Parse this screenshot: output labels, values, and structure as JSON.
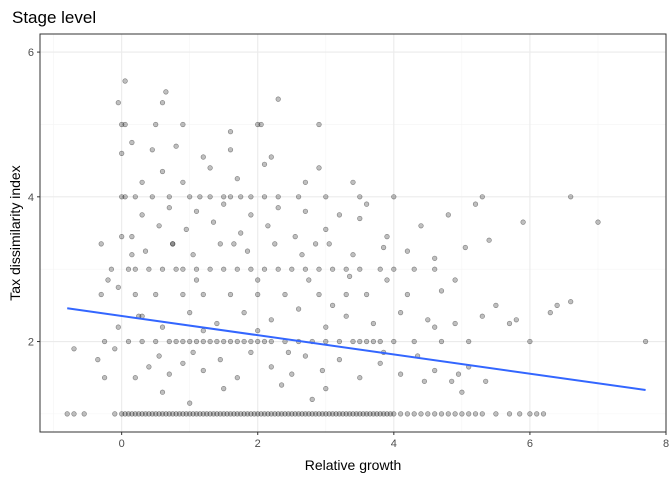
{
  "chart_data": {
    "type": "scatter",
    "title": "Stage level",
    "xlabel": "Relative growth",
    "ylabel": "Tax dissimilarity index",
    "xlim": [
      -1.2,
      8.0
    ],
    "ylim": [
      0.75,
      6.25
    ],
    "x_ticks": [
      0,
      2,
      4,
      6,
      8
    ],
    "x_tick_labels": [
      "0",
      "2",
      "4",
      "6",
      "8"
    ],
    "y_ticks": [
      2,
      4,
      6
    ],
    "y_tick_labels": [
      "2",
      "4",
      "6"
    ],
    "grid": true,
    "legend": "none",
    "colors": {
      "points": "#000000",
      "points_alpha": 0.25,
      "trend_line": "#3366ff",
      "grid": "#ebebeb",
      "border": "#333333"
    },
    "trend_line": {
      "type": "linear",
      "x": [
        -0.8,
        7.7
      ],
      "y": [
        2.46,
        1.33
      ]
    },
    "points": [
      [
        -0.8,
        1.0
      ],
      [
        -0.7,
        1.0
      ],
      [
        -0.55,
        1.0
      ],
      [
        -0.7,
        1.9
      ],
      [
        -0.35,
        1.75
      ],
      [
        -0.25,
        2.0
      ],
      [
        -0.3,
        2.65
      ],
      [
        -0.2,
        2.85
      ],
      [
        -0.1,
        1.9
      ],
      [
        -0.05,
        2.2
      ],
      [
        -0.3,
        3.35
      ],
      [
        0.15,
        3.2
      ],
      [
        -0.15,
        3.0
      ],
      [
        -0.25,
        1.5
      ],
      [
        -0.1,
        1.0
      ],
      [
        -0.05,
        2.75
      ],
      [
        0.0,
        3.45
      ],
      [
        0.05,
        4.0
      ],
      [
        0.0,
        1.0
      ],
      [
        0.05,
        1.0
      ],
      [
        0.1,
        1.0
      ],
      [
        0.15,
        1.0
      ],
      [
        0.2,
        1.0
      ],
      [
        0.25,
        1.0
      ],
      [
        0.3,
        1.0
      ],
      [
        0.35,
        1.0
      ],
      [
        0.4,
        1.0
      ],
      [
        0.45,
        1.0
      ],
      [
        0.5,
        1.0
      ],
      [
        0.55,
        1.0
      ],
      [
        0.6,
        1.0
      ],
      [
        0.65,
        1.0
      ],
      [
        0.7,
        1.0
      ],
      [
        0.75,
        1.0
      ],
      [
        0.8,
        1.0
      ],
      [
        0.85,
        1.0
      ],
      [
        0.9,
        1.0
      ],
      [
        0.95,
        1.0
      ],
      [
        1.0,
        1.0
      ],
      [
        1.05,
        1.0
      ],
      [
        1.1,
        1.0
      ],
      [
        1.15,
        1.0
      ],
      [
        1.2,
        1.0
      ],
      [
        1.25,
        1.0
      ],
      [
        1.3,
        1.0
      ],
      [
        1.35,
        1.0
      ],
      [
        1.4,
        1.0
      ],
      [
        1.45,
        1.0
      ],
      [
        1.5,
        1.0
      ],
      [
        1.55,
        1.0
      ],
      [
        1.6,
        1.0
      ],
      [
        1.65,
        1.0
      ],
      [
        1.7,
        1.0
      ],
      [
        1.75,
        1.0
      ],
      [
        1.8,
        1.0
      ],
      [
        1.85,
        1.0
      ],
      [
        1.9,
        1.0
      ],
      [
        1.95,
        1.0
      ],
      [
        2.0,
        1.0
      ],
      [
        2.05,
        1.0
      ],
      [
        2.1,
        1.0
      ],
      [
        2.15,
        1.0
      ],
      [
        2.2,
        1.0
      ],
      [
        2.25,
        1.0
      ],
      [
        2.3,
        1.0
      ],
      [
        2.35,
        1.0
      ],
      [
        2.4,
        1.0
      ],
      [
        2.45,
        1.0
      ],
      [
        2.5,
        1.0
      ],
      [
        2.55,
        1.0
      ],
      [
        2.6,
        1.0
      ],
      [
        2.65,
        1.0
      ],
      [
        2.7,
        1.0
      ],
      [
        2.75,
        1.0
      ],
      [
        2.8,
        1.0
      ],
      [
        2.85,
        1.0
      ],
      [
        2.9,
        1.0
      ],
      [
        2.95,
        1.0
      ],
      [
        3.0,
        1.0
      ],
      [
        3.05,
        1.0
      ],
      [
        3.1,
        1.0
      ],
      [
        3.15,
        1.0
      ],
      [
        3.2,
        1.0
      ],
      [
        3.25,
        1.0
      ],
      [
        3.3,
        1.0
      ],
      [
        3.35,
        1.0
      ],
      [
        3.4,
        1.0
      ],
      [
        3.45,
        1.0
      ],
      [
        3.5,
        1.0
      ],
      [
        3.55,
        1.0
      ],
      [
        3.6,
        1.0
      ],
      [
        3.65,
        1.0
      ],
      [
        3.7,
        1.0
      ],
      [
        3.75,
        1.0
      ],
      [
        3.8,
        1.0
      ],
      [
        3.85,
        1.0
      ],
      [
        3.9,
        1.0
      ],
      [
        3.95,
        1.0
      ],
      [
        4.0,
        1.0
      ],
      [
        4.1,
        1.0
      ],
      [
        4.2,
        1.0
      ],
      [
        4.3,
        1.0
      ],
      [
        4.4,
        1.0
      ],
      [
        4.5,
        1.0
      ],
      [
        4.6,
        1.0
      ],
      [
        4.7,
        1.0
      ],
      [
        4.8,
        1.0
      ],
      [
        4.9,
        1.0
      ],
      [
        5.0,
        1.0
      ],
      [
        5.1,
        1.0
      ],
      [
        5.2,
        1.0
      ],
      [
        5.3,
        1.0
      ],
      [
        5.5,
        1.0
      ],
      [
        5.7,
        1.0
      ],
      [
        5.85,
        1.0
      ],
      [
        6.0,
        1.0
      ],
      [
        6.1,
        1.0
      ],
      [
        6.2,
        1.0
      ],
      [
        0.2,
        1.5
      ],
      [
        0.4,
        1.65
      ],
      [
        0.55,
        1.8
      ],
      [
        0.7,
        1.55
      ],
      [
        0.9,
        1.7
      ],
      [
        1.05,
        1.85
      ],
      [
        1.2,
        1.6
      ],
      [
        1.45,
        1.75
      ],
      [
        1.7,
        1.5
      ],
      [
        1.9,
        1.85
      ],
      [
        2.2,
        1.65
      ],
      [
        2.5,
        1.55
      ],
      [
        2.7,
        1.8
      ],
      [
        2.95,
        1.6
      ],
      [
        3.2,
        1.75
      ],
      [
        3.5,
        1.5
      ],
      [
        3.8,
        1.7
      ],
      [
        4.1,
        1.55
      ],
      [
        4.35,
        1.8
      ],
      [
        4.6,
        1.6
      ],
      [
        4.85,
        1.45
      ],
      [
        5.0,
        1.3
      ],
      [
        4.95,
        1.55
      ],
      [
        5.1,
        1.65
      ],
      [
        5.35,
        1.45
      ],
      [
        3.0,
        1.35
      ],
      [
        2.35,
        1.4
      ],
      [
        1.5,
        1.35
      ],
      [
        0.6,
        1.3
      ],
      [
        0.1,
        2.0
      ],
      [
        0.3,
        2.0
      ],
      [
        0.5,
        2.0
      ],
      [
        0.7,
        2.0
      ],
      [
        0.8,
        2.0
      ],
      [
        0.9,
        2.0
      ],
      [
        1.0,
        2.0
      ],
      [
        1.1,
        2.0
      ],
      [
        1.2,
        2.0
      ],
      [
        1.3,
        2.0
      ],
      [
        1.4,
        2.0
      ],
      [
        1.5,
        2.0
      ],
      [
        1.6,
        2.0
      ],
      [
        1.7,
        2.0
      ],
      [
        1.8,
        2.0
      ],
      [
        1.9,
        2.0
      ],
      [
        2.0,
        2.0
      ],
      [
        2.1,
        2.0
      ],
      [
        2.2,
        2.0
      ],
      [
        2.4,
        2.0
      ],
      [
        2.6,
        2.0
      ],
      [
        2.8,
        2.0
      ],
      [
        3.0,
        2.0
      ],
      [
        3.2,
        2.0
      ],
      [
        3.4,
        2.0
      ],
      [
        3.5,
        2.0
      ],
      [
        3.6,
        2.0
      ],
      [
        3.7,
        2.0
      ],
      [
        3.8,
        2.0
      ],
      [
        4.0,
        2.0
      ],
      [
        4.3,
        2.0
      ],
      [
        4.7,
        2.0
      ],
      [
        5.1,
        2.0
      ],
      [
        6.0,
        2.0
      ],
      [
        7.7,
        2.0
      ],
      [
        0.3,
        2.35
      ],
      [
        0.6,
        2.2
      ],
      [
        1.0,
        2.4
      ],
      [
        1.4,
        2.25
      ],
      [
        1.8,
        2.4
      ],
      [
        2.2,
        2.3
      ],
      [
        2.6,
        2.45
      ],
      [
        3.0,
        2.2
      ],
      [
        3.3,
        2.35
      ],
      [
        3.7,
        2.25
      ],
      [
        4.1,
        2.4
      ],
      [
        4.5,
        2.3
      ],
      [
        4.9,
        2.25
      ],
      [
        5.3,
        2.35
      ],
      [
        5.7,
        2.25
      ],
      [
        6.3,
        2.4
      ],
      [
        2.0,
        2.15
      ],
      [
        1.2,
        2.15
      ],
      [
        3.1,
        2.5
      ],
      [
        4.6,
        2.2
      ],
      [
        0.2,
        2.65
      ],
      [
        0.5,
        2.65
      ],
      [
        0.9,
        2.65
      ],
      [
        1.2,
        2.65
      ],
      [
        1.6,
        2.65
      ],
      [
        2.0,
        2.65
      ],
      [
        2.4,
        2.65
      ],
      [
        2.9,
        2.65
      ],
      [
        3.3,
        2.65
      ],
      [
        3.6,
        2.65
      ],
      [
        4.2,
        2.65
      ],
      [
        4.7,
        2.7
      ],
      [
        5.5,
        2.5
      ],
      [
        6.4,
        2.5
      ],
      [
        6.6,
        2.55
      ],
      [
        5.8,
        2.3
      ],
      [
        0.1,
        3.0
      ],
      [
        0.2,
        3.0
      ],
      [
        0.4,
        3.0
      ],
      [
        0.6,
        3.0
      ],
      [
        0.8,
        3.0
      ],
      [
        0.9,
        3.0
      ],
      [
        1.1,
        3.0
      ],
      [
        1.3,
        3.0
      ],
      [
        1.5,
        3.0
      ],
      [
        1.7,
        3.0
      ],
      [
        1.9,
        3.0
      ],
      [
        2.1,
        3.0
      ],
      [
        2.3,
        3.0
      ],
      [
        2.5,
        3.0
      ],
      [
        2.7,
        3.0
      ],
      [
        2.9,
        3.0
      ],
      [
        3.1,
        3.0
      ],
      [
        3.3,
        3.0
      ],
      [
        3.5,
        3.0
      ],
      [
        3.8,
        3.0
      ],
      [
        4.0,
        3.0
      ],
      [
        4.3,
        3.0
      ],
      [
        4.6,
        3.0
      ],
      [
        0.35,
        3.25
      ],
      [
        0.75,
        3.35
      ],
      [
        1.05,
        3.2
      ],
      [
        1.45,
        3.35
      ],
      [
        1.85,
        3.25
      ],
      [
        2.25,
        3.35
      ],
      [
        2.65,
        3.2
      ],
      [
        3.05,
        3.35
      ],
      [
        3.4,
        3.2
      ],
      [
        3.85,
        3.3
      ],
      [
        4.2,
        3.25
      ],
      [
        4.6,
        3.15
      ],
      [
        5.05,
        3.3
      ],
      [
        5.4,
        3.4
      ],
      [
        0.15,
        3.45
      ],
      [
        0.55,
        3.6
      ],
      [
        0.95,
        3.55
      ],
      [
        1.35,
        3.65
      ],
      [
        1.75,
        3.5
      ],
      [
        2.15,
        3.6
      ],
      [
        2.55,
        3.45
      ],
      [
        3.0,
        3.55
      ],
      [
        3.5,
        3.7
      ],
      [
        3.9,
        3.45
      ],
      [
        4.4,
        3.6
      ],
      [
        4.8,
        3.75
      ],
      [
        5.9,
        3.65
      ],
      [
        7.0,
        3.65
      ],
      [
        5.2,
        3.9
      ],
      [
        0.3,
        3.75
      ],
      [
        0.7,
        3.85
      ],
      [
        1.1,
        3.8
      ],
      [
        1.5,
        3.9
      ],
      [
        1.9,
        3.75
      ],
      [
        2.3,
        3.85
      ],
      [
        2.7,
        3.8
      ],
      [
        3.2,
        3.75
      ],
      [
        3.6,
        3.9
      ],
      [
        0.0,
        4.0
      ],
      [
        0.2,
        4.0
      ],
      [
        0.45,
        4.0
      ],
      [
        0.7,
        4.0
      ],
      [
        1.0,
        4.0
      ],
      [
        1.15,
        4.0
      ],
      [
        1.3,
        4.0
      ],
      [
        1.5,
        4.0
      ],
      [
        1.6,
        4.0
      ],
      [
        1.75,
        4.0
      ],
      [
        1.9,
        4.0
      ],
      [
        2.1,
        4.0
      ],
      [
        2.3,
        4.0
      ],
      [
        2.6,
        4.0
      ],
      [
        3.0,
        4.0
      ],
      [
        3.5,
        4.0
      ],
      [
        4.0,
        4.0
      ],
      [
        5.3,
        4.0
      ],
      [
        6.6,
        4.0
      ],
      [
        0.3,
        4.2
      ],
      [
        0.6,
        4.35
      ],
      [
        0.9,
        4.2
      ],
      [
        1.3,
        4.4
      ],
      [
        1.7,
        4.25
      ],
      [
        2.1,
        4.45
      ],
      [
        2.7,
        4.2
      ],
      [
        3.4,
        4.2
      ],
      [
        0.0,
        4.6
      ],
      [
        0.15,
        4.75
      ],
      [
        0.45,
        4.65
      ],
      [
        0.8,
        4.7
      ],
      [
        1.2,
        4.55
      ],
      [
        1.6,
        4.65
      ],
      [
        2.2,
        4.55
      ],
      [
        2.9,
        4.4
      ],
      [
        1.6,
        4.9
      ],
      [
        0.0,
        5.0
      ],
      [
        0.05,
        5.0
      ],
      [
        0.5,
        5.0
      ],
      [
        0.9,
        5.0
      ],
      [
        2.0,
        5.0
      ],
      [
        2.05,
        5.0
      ],
      [
        2.9,
        5.0
      ],
      [
        0.6,
        5.3
      ],
      [
        0.65,
        5.45
      ],
      [
        0.05,
        5.6
      ],
      [
        -0.05,
        5.3
      ],
      [
        2.3,
        5.35
      ],
      [
        0.75,
        3.35
      ],
      [
        0.25,
        2.35
      ],
      [
        1.65,
        3.35
      ],
      [
        2.85,
        3.35
      ],
      [
        3.35,
        2.9
      ],
      [
        1.0,
        1.15
      ],
      [
        2.8,
        1.2
      ],
      [
        4.45,
        1.45
      ],
      [
        3.85,
        1.85
      ],
      [
        2.45,
        1.85
      ],
      [
        1.1,
        2.85
      ],
      [
        2.0,
        2.85
      ],
      [
        2.75,
        2.85
      ],
      [
        3.9,
        2.85
      ],
      [
        4.9,
        2.85
      ]
    ]
  }
}
